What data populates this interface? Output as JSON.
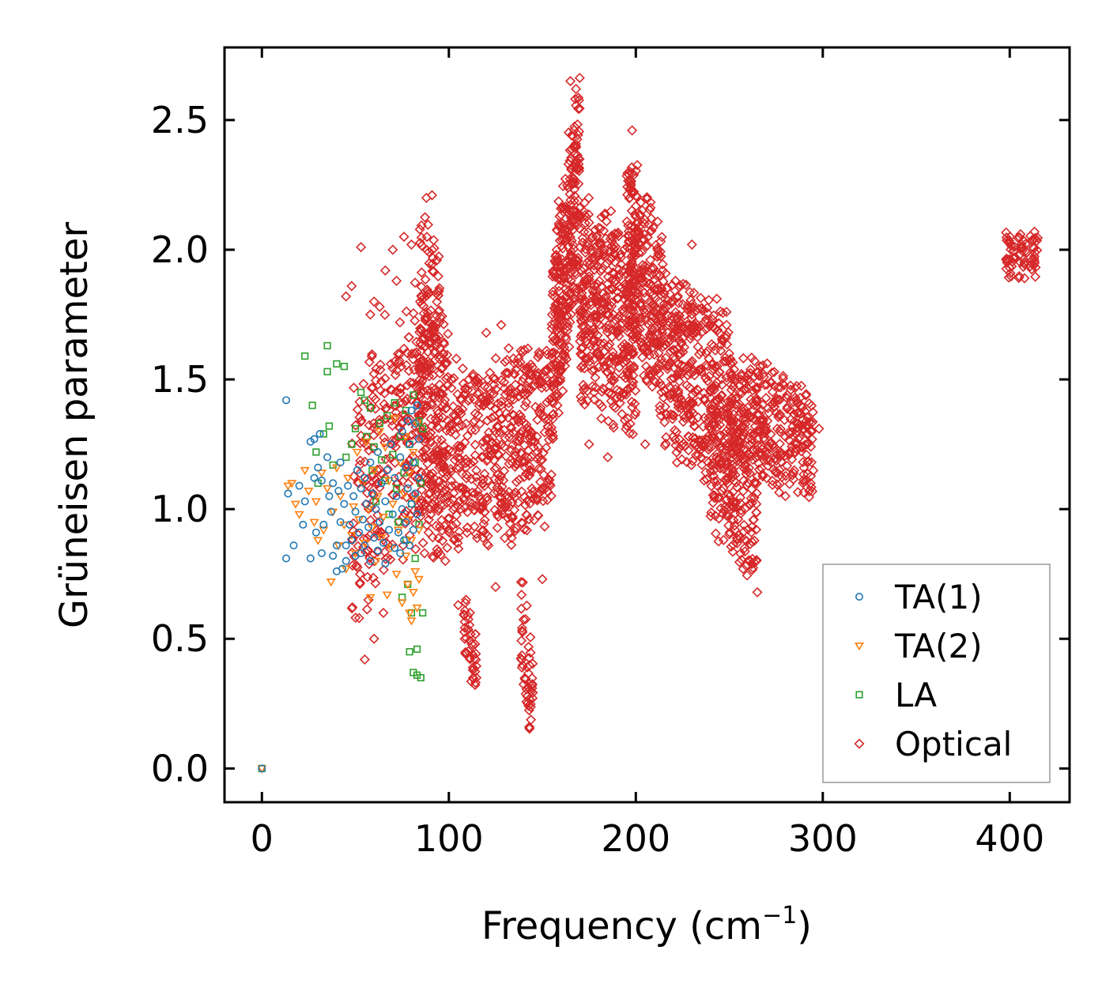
{
  "chart_data": {
    "type": "scatter",
    "title": "",
    "xlabel": "Frequency (cm",
    "xlabel_sup": "−1",
    "xlabel_end": ")",
    "ylabel": "Grüneisen parameter",
    "xlim": [
      -20,
      432
    ],
    "ylim": [
      -0.13,
      2.78
    ],
    "xticks": [
      0,
      100,
      200,
      300,
      400
    ],
    "xtick_labels": [
      "0",
      "100",
      "200",
      "300",
      "400"
    ],
    "yticks": [
      0.0,
      0.5,
      1.0,
      1.5,
      2.0,
      2.5
    ],
    "ytick_labels": [
      "0.0",
      "0.5",
      "1.0",
      "1.5",
      "2.0",
      "2.5"
    ],
    "grid": false,
    "legend_position": "bottom-right",
    "series": [
      {
        "name": "TA(1)",
        "marker": "circle",
        "color": "#1f77b4",
        "points": [
          [
            0,
            0.0
          ],
          [
            13,
            1.42
          ],
          [
            13,
            0.81
          ],
          [
            14,
            1.06
          ],
          [
            17,
            0.86
          ],
          [
            20,
            1.09
          ],
          [
            22,
            0.94
          ],
          [
            23,
            1.03
          ],
          [
            26,
            0.81
          ],
          [
            26,
            1.26
          ],
          [
            28,
            1.27
          ],
          [
            28,
            1.12
          ],
          [
            29,
            0.91
          ],
          [
            30,
            1.16
          ],
          [
            31,
            1.29
          ],
          [
            32,
            1.11
          ],
          [
            32,
            0.83
          ],
          [
            33,
            0.94
          ],
          [
            35,
            1.2
          ],
          [
            36,
            1.05
          ],
          [
            37,
            0.99
          ],
          [
            38,
            0.82
          ],
          [
            38,
            1.1
          ],
          [
            40,
            0.86
          ],
          [
            40,
            0.76
          ],
          [
            41,
            1.07
          ],
          [
            42,
            0.95
          ],
          [
            42,
            1.18
          ],
          [
            43,
            0.77
          ],
          [
            44,
            1.02
          ],
          [
            45,
            0.86
          ],
          [
            45,
            0.8
          ],
          [
            46,
            1.09
          ],
          [
            47,
            0.94
          ],
          [
            48,
            0.88
          ],
          [
            49,
            1.05
          ],
          [
            50,
            0.82
          ],
          [
            50,
            0.99
          ],
          [
            51,
            1.15
          ],
          [
            52,
            0.91
          ],
          [
            53,
            0.83
          ],
          [
            53,
            1.08
          ],
          [
            54,
            0.96
          ],
          [
            55,
            1.12
          ],
          [
            55,
            0.86
          ],
          [
            56,
            1.02
          ],
          [
            57,
            0.93
          ],
          [
            58,
            0.8
          ],
          [
            58,
            1.18
          ],
          [
            59,
            1.06
          ],
          [
            60,
            0.89
          ],
          [
            61,
            1.0
          ],
          [
            62,
            1.22
          ],
          [
            62,
            0.84
          ],
          [
            63,
            0.95
          ],
          [
            64,
            1.1
          ],
          [
            65,
            0.87
          ],
          [
            66,
            1.03
          ],
          [
            66,
            0.79
          ],
          [
            67,
            1.15
          ],
          [
            68,
            0.92
          ],
          [
            69,
            1.25
          ],
          [
            70,
            0.98
          ],
          [
            71,
            0.85
          ],
          [
            71,
            1.12
          ],
          [
            72,
            1.05
          ],
          [
            73,
            0.91
          ],
          [
            74,
            1.2
          ],
          [
            74,
            0.83
          ],
          [
            75,
            1.3
          ],
          [
            75,
            1.0
          ],
          [
            76,
            0.88
          ],
          [
            77,
            1.16
          ],
          [
            77,
            0.95
          ],
          [
            78,
            1.34
          ],
          [
            78,
            1.08
          ],
          [
            79,
            0.86
          ],
          [
            79,
            1.25
          ],
          [
            80,
            1.02
          ],
          [
            80,
            1.38
          ],
          [
            81,
            0.92
          ],
          [
            81,
            1.18
          ],
          [
            82,
            1.33
          ],
          [
            82,
            1.06
          ],
          [
            83,
            0.98
          ],
          [
            83,
            1.4
          ],
          [
            84,
            1.27
          ],
          [
            84,
            1.12
          ]
        ]
      },
      {
        "name": "TA(2)",
        "marker": "triangle-down",
        "color": "#ff7f0e",
        "points": [
          [
            0,
            0.0
          ],
          [
            14,
            1.09
          ],
          [
            16,
            1.1
          ],
          [
            18,
            1.02
          ],
          [
            20,
            0.98
          ],
          [
            23,
            1.15
          ],
          [
            25,
            1.07
          ],
          [
            28,
            0.95
          ],
          [
            29,
            1.03
          ],
          [
            30,
            0.88
          ],
          [
            32,
            1.14
          ],
          [
            33,
            0.92
          ],
          [
            35,
            1.08
          ],
          [
            37,
            0.72
          ],
          [
            38,
            0.99
          ],
          [
            40,
            1.16
          ],
          [
            41,
            0.86
          ],
          [
            42,
            1.05
          ],
          [
            44,
            0.94
          ],
          [
            45,
            0.77
          ],
          [
            46,
            1.12
          ],
          [
            48,
            0.9
          ],
          [
            49,
            1.01
          ],
          [
            50,
            0.83
          ],
          [
            51,
            1.22
          ],
          [
            52,
            0.96
          ],
          [
            54,
            1.1
          ],
          [
            55,
            0.87
          ],
          [
            56,
            1.26
          ],
          [
            57,
            1.0
          ],
          [
            58,
            0.66
          ],
          [
            59,
            0.93
          ],
          [
            60,
            1.15
          ],
          [
            61,
            0.8
          ],
          [
            62,
            1.05
          ],
          [
            63,
            1.3
          ],
          [
            64,
            0.89
          ],
          [
            65,
            0.97
          ],
          [
            66,
            1.24
          ],
          [
            67,
            0.67
          ],
          [
            68,
            1.11
          ],
          [
            69,
            0.85
          ],
          [
            70,
            1.02
          ],
          [
            71,
            1.35
          ],
          [
            72,
            0.75
          ],
          [
            73,
            0.92
          ],
          [
            74,
            1.18
          ],
          [
            75,
            0.64
          ],
          [
            76,
            1.06
          ],
          [
            77,
            0.82
          ],
          [
            77,
            1.28
          ],
          [
            78,
            0.71
          ],
          [
            78,
            0.96
          ],
          [
            79,
            0.6
          ],
          [
            79,
            1.14
          ],
          [
            80,
            0.57
          ],
          [
            80,
            0.88
          ],
          [
            81,
            1.22
          ],
          [
            81,
            0.68
          ],
          [
            82,
            0.76
          ],
          [
            82,
            1.04
          ],
          [
            83,
            0.62
          ],
          [
            83,
            1.33
          ],
          [
            84,
            0.92
          ],
          [
            84,
            0.73
          ]
        ]
      },
      {
        "name": "LA",
        "marker": "square",
        "color": "#2ca02c",
        "points": [
          [
            0,
            0.0
          ],
          [
            23,
            1.59
          ],
          [
            27,
            1.4
          ],
          [
            29,
            1.22
          ],
          [
            30,
            1.1
          ],
          [
            33,
            1.29
          ],
          [
            35,
            1.63
          ],
          [
            35,
            1.53
          ],
          [
            36,
            1.32
          ],
          [
            38,
            1.17
          ],
          [
            40,
            1.56
          ],
          [
            44,
            1.55
          ],
          [
            45,
            1.2
          ],
          [
            48,
            1.25
          ],
          [
            50,
            1.31
          ],
          [
            53,
            1.45
          ],
          [
            55,
            1.42
          ],
          [
            56,
            1.28
          ],
          [
            58,
            1.39
          ],
          [
            59,
            1.15
          ],
          [
            60,
            1.24
          ],
          [
            61,
            1.03
          ],
          [
            63,
            1.33
          ],
          [
            64,
            1.19
          ],
          [
            66,
            1.11
          ],
          [
            67,
            1.36
          ],
          [
            68,
            0.98
          ],
          [
            70,
            1.21
          ],
          [
            71,
            1.41
          ],
          [
            72,
            1.08
          ],
          [
            73,
            0.95
          ],
          [
            74,
            1.28
          ],
          [
            75,
            0.66
          ],
          [
            76,
            1.14
          ],
          [
            77,
            1.38
          ],
          [
            77,
            0.88
          ],
          [
            78,
            0.71
          ],
          [
            79,
            1.25
          ],
          [
            79,
            0.45
          ],
          [
            80,
            1.02
          ],
          [
            80,
            0.6
          ],
          [
            81,
            1.44
          ],
          [
            81,
            0.37
          ],
          [
            82,
            0.81
          ],
          [
            82,
            1.18
          ],
          [
            83,
            0.36
          ],
          [
            83,
            0.46
          ],
          [
            84,
            1.34
          ],
          [
            84,
            0.94
          ],
          [
            85,
            0.35
          ],
          [
            85,
            1.1
          ],
          [
            86,
            0.6
          ],
          [
            86,
            1.31
          ]
        ]
      },
      {
        "name": "Optical",
        "marker": "diamond",
        "color": "#d62728",
        "note": "dense point cloud; generated from band segments (x = frequency, y = Grüneisen value ranges)",
        "segments": [
          {
            "x": [
              48,
              85
            ],
            "y_center": [
              1.05,
              1.4
            ],
            "spread": 0.55,
            "count": 260
          },
          {
            "x": [
              84,
              100
            ],
            "y_center": [
              1.35,
              1.25
            ],
            "spread": 0.55,
            "count": 260
          },
          {
            "x": [
              84,
              95
            ],
            "y_center": [
              1.95,
              1.8
            ],
            "spread": 0.25,
            "count": 60
          },
          {
            "x": [
              100,
              155
            ],
            "y_center": [
              1.15,
              1.3
            ],
            "spread": 0.4,
            "count": 500
          },
          {
            "x": [
              108,
              115
            ],
            "y_center": [
              0.55,
              0.4
            ],
            "spread": 0.15,
            "count": 45
          },
          {
            "x": [
              138,
              145
            ],
            "y_center": [
              0.55,
              0.25
            ],
            "spread": 0.25,
            "count": 50
          },
          {
            "x": [
              155,
              170
            ],
            "y_center": [
              1.6,
              2.3
            ],
            "spread": 0.45,
            "count": 320
          },
          {
            "x": [
              170,
              200
            ],
            "y_center": [
              1.8,
              1.7
            ],
            "spread": 0.45,
            "count": 420
          },
          {
            "x": [
              195,
              215
            ],
            "y_center": [
              2.05,
              1.7
            ],
            "spread": 0.4,
            "count": 280
          },
          {
            "x": [
              215,
              250
            ],
            "y_center": [
              1.6,
              1.4
            ],
            "spread": 0.4,
            "count": 380
          },
          {
            "x": [
              240,
              265
            ],
            "y_center": [
              1.2,
              0.95
            ],
            "spread": 0.3,
            "count": 200
          },
          {
            "x": [
              250,
              295
            ],
            "y_center": [
              1.4,
              1.25
            ],
            "spread": 0.25,
            "count": 350
          },
          {
            "x": [
              398,
              415
            ],
            "y_center": [
              1.98,
              1.98
            ],
            "spread": 0.1,
            "count": 70
          }
        ],
        "points": [
          [
            45,
            1.82
          ],
          [
            48,
            1.86
          ],
          [
            53,
            2.01
          ],
          [
            58,
            1.75
          ],
          [
            60,
            1.8
          ],
          [
            63,
            1.78
          ],
          [
            66,
            1.92
          ],
          [
            70,
            2.0
          ],
          [
            72,
            1.88
          ],
          [
            76,
            2.05
          ],
          [
            78,
            1.6
          ],
          [
            80,
            2.02
          ],
          [
            88,
            2.2
          ],
          [
            91,
            2.21
          ],
          [
            95,
            1.72
          ],
          [
            104,
            1.58
          ],
          [
            113,
            1.52
          ],
          [
            120,
            1.68
          ],
          [
            128,
            1.71
          ],
          [
            132,
            1.62
          ],
          [
            143,
            0.16
          ],
          [
            165,
            2.65
          ],
          [
            168,
            2.62
          ],
          [
            198,
            2.46
          ],
          [
            230,
            2.02
          ],
          [
            250,
            1.6
          ],
          [
            262,
            0.79
          ],
          [
            298,
            1.31
          ],
          [
            55,
            0.42
          ],
          [
            60,
            0.5
          ],
          [
            52,
            0.58
          ],
          [
            57,
            0.65
          ],
          [
            65,
            0.6
          ],
          [
            105,
            0.63
          ],
          [
            125,
            0.7
          ],
          [
            150,
            0.73
          ],
          [
            175,
            1.25
          ],
          [
            185,
            1.2
          ],
          [
            205,
            1.25
          ],
          [
            220,
            1.28
          ],
          [
            235,
            1.2
          ],
          [
            280,
            1.05
          ]
        ]
      }
    ]
  }
}
